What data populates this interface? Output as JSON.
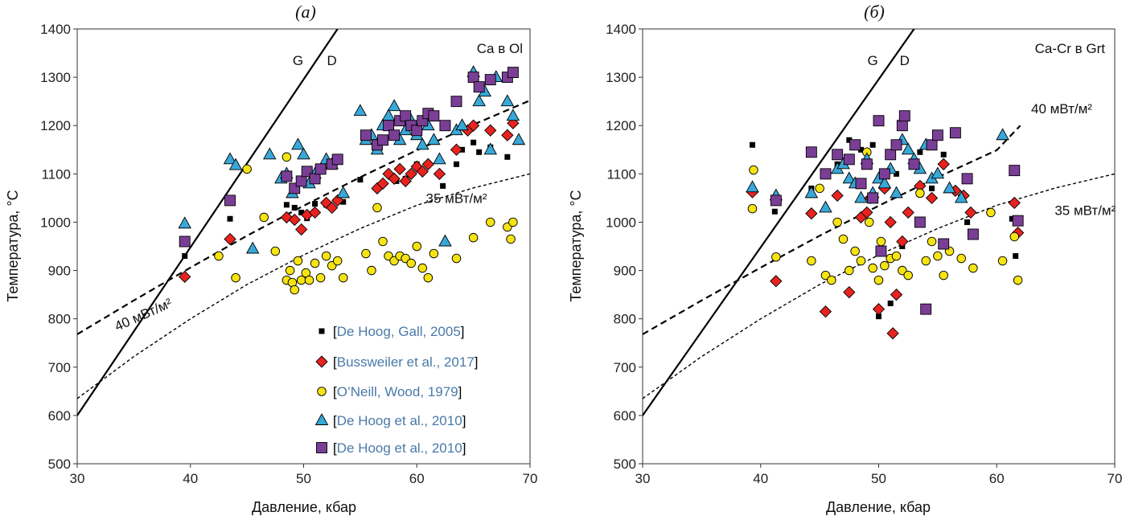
{
  "colors": {
    "series_a": "#000000",
    "series_b": "#e8231f",
    "series_c": "#f5e412",
    "series_d": "#38a8d8",
    "series_e": "#7a3e96",
    "legend_text": "#4a7aa8",
    "legend_bracket": "#000000"
  },
  "legend": {
    "items": [
      {
        "marker": "square-small",
        "open": "[",
        "text": "De Hoog, Gall, 2005",
        "close": "]"
      },
      {
        "marker": "diamond",
        "open": "[",
        "text": "Bussweiler et al., 2017",
        "close": "]"
      },
      {
        "marker": "circle",
        "open": "[",
        "text": "O’Neill, Wood, 1979",
        "close": "]"
      },
      {
        "marker": "triangle",
        "open": "[",
        "text": "De Hoog et al., 2010",
        "close": "]"
      },
      {
        "marker": "square",
        "open": "[",
        "text": "De Hoog et al., 2010",
        "close": "]"
      }
    ]
  },
  "chart_data": [
    {
      "type": "scatter",
      "panel_label": "(а)",
      "title": "Ca в Ol",
      "xlabel": "Давление, кбар",
      "ylabel": "Температура, °C",
      "xlim": [
        30,
        70
      ],
      "ylim": [
        500,
        1400
      ],
      "xticks": [
        "30",
        "40",
        "50",
        "60",
        "70"
      ],
      "yticks": [
        "500",
        "600",
        "700",
        "800",
        "900",
        "1000",
        "1100",
        "1200",
        "1300",
        "1400"
      ],
      "grid": false,
      "legend_position": "bottom-right",
      "lines": [
        {
          "style": "solid",
          "x": [
            30,
            53
          ],
          "y": [
            600,
            1400
          ]
        },
        {
          "style": "long-dash",
          "x": [
            30,
            35,
            40,
            45,
            50,
            55,
            60,
            65,
            70
          ],
          "y": [
            768,
            838,
            906,
            972,
            1034,
            1093,
            1149,
            1202,
            1252
          ]
        },
        {
          "style": "short-dash",
          "x": [
            30,
            35,
            40,
            45,
            50,
            55,
            60,
            65,
            70
          ],
          "y": [
            635,
            722,
            800,
            871,
            932,
            987,
            1035,
            1071,
            1100
          ]
        }
      ],
      "annotations": [
        {
          "text": "G",
          "x": 49.5,
          "y": 1325
        },
        {
          "text": "D",
          "x": 52.5,
          "y": 1325
        },
        {
          "text": "40 мВт/м²",
          "x": 36,
          "y": 800
        },
        {
          "text": "35 мВт/м²",
          "x": 63.5,
          "y": 1040
        }
      ],
      "series": [
        {
          "name": "[De Hoog, Gall, 2005]",
          "marker": "square-small",
          "x": [
            39.5,
            43.5,
            48.5,
            49.2,
            49.8,
            50.3,
            51,
            52,
            53.5,
            55,
            57.5,
            58.2,
            59,
            60,
            62.3,
            63.5,
            64,
            65,
            65.5,
            66.5,
            68
          ],
          "y": [
            930,
            1007,
            1036,
            1030,
            1020,
            1008,
            1038,
            1036,
            1042,
            1088,
            1100,
            1085,
            1090,
            1120,
            1075,
            1120,
            1150,
            1165,
            1145,
            1155,
            1135
          ]
        },
        {
          "name": "[Bussweiler et al., 2017]",
          "marker": "diamond",
          "x": [
            39.5,
            43.5,
            48.5,
            49.2,
            49.8,
            50.3,
            51,
            52,
            52.5,
            53,
            56.5,
            57,
            57.5,
            58,
            58.5,
            59,
            59.5,
            60,
            60.5,
            61,
            62,
            63.5,
            64.5,
            65,
            66.5,
            68,
            68.5
          ],
          "y": [
            887,
            965,
            1010,
            1005,
            985,
            1015,
            1020,
            1040,
            1030,
            1045,
            1070,
            1080,
            1100,
            1090,
            1110,
            1085,
            1100,
            1115,
            1105,
            1120,
            1100,
            1150,
            1190,
            1200,
            1190,
            1180,
            1205
          ]
        },
        {
          "name": "[O’Neill, Wood, 1979]",
          "marker": "circle",
          "x": [
            42.5,
            44,
            45,
            46.5,
            47.5,
            48.5,
            48.5,
            48.8,
            49,
            49.2,
            49.5,
            49.8,
            50.2,
            50.5,
            51,
            51.5,
            52,
            52.5,
            53,
            53.5,
            55.5,
            56,
            56.5,
            57,
            57.5,
            58,
            58.5,
            59,
            59.5,
            60,
            60.5,
            61,
            61.5,
            63.5,
            65,
            66.5,
            68,
            68.3,
            68.5
          ],
          "y": [
            930,
            885,
            1110,
            1010,
            940,
            1135,
            880,
            900,
            875,
            860,
            920,
            880,
            895,
            880,
            915,
            885,
            930,
            910,
            920,
            885,
            935,
            900,
            1030,
            960,
            930,
            920,
            930,
            925,
            915,
            950,
            905,
            885,
            935,
            925,
            968,
            1000,
            990,
            965,
            1000
          ]
        },
        {
          "name": "[De Hoog et al., 2010]",
          "marker": "triangle",
          "x": [
            39.5,
            43.5,
            44,
            45.5,
            47,
            48,
            48.5,
            49,
            49.5,
            50,
            50.5,
            51,
            52,
            52.5,
            53.5,
            55,
            55.5,
            56,
            56.5,
            57,
            57.5,
            58,
            58.5,
            59,
            59.5,
            60,
            60.5,
            61,
            61.5,
            62,
            62.5,
            63.5,
            64,
            65,
            65.5,
            66,
            66.5,
            67,
            68,
            68.5,
            69
          ],
          "y": [
            997,
            1130,
            1118,
            945,
            1140,
            1090,
            1100,
            1060,
            1160,
            1140,
            1080,
            1100,
            1130,
            1120,
            1060,
            1230,
            1170,
            1180,
            1150,
            1200,
            1220,
            1240,
            1170,
            1190,
            1210,
            1180,
            1160,
            1200,
            1170,
            1130,
            960,
            1190,
            1200,
            1310,
            1250,
            1270,
            1150,
            1300,
            1250,
            1220,
            1170
          ]
        },
        {
          "name": "[De Hoog et al., 2010]",
          "marker": "square",
          "x": [
            39.5,
            43.5,
            48.5,
            49.2,
            49.8,
            50.3,
            51,
            51.5,
            52.5,
            53,
            55.5,
            56.5,
            57,
            57.5,
            58,
            58.5,
            59,
            59.5,
            60,
            60.5,
            61,
            61.5,
            62.5,
            63.5,
            65,
            65.5,
            66.5,
            68,
            68.5
          ],
          "y": [
            960,
            1045,
            1095,
            1070,
            1085,
            1105,
            1090,
            1110,
            1120,
            1130,
            1180,
            1160,
            1170,
            1200,
            1180,
            1210,
            1220,
            1200,
            1190,
            1210,
            1225,
            1220,
            1200,
            1250,
            1300,
            1280,
            1295,
            1300,
            1310
          ]
        }
      ]
    },
    {
      "type": "scatter",
      "panel_label": "(б)",
      "title": "Ca-Cr в Grt",
      "xlabel": "Давление, кбар",
      "ylabel": "Температура, °C",
      "xlim": [
        30,
        70
      ],
      "ylim": [
        500,
        1400
      ],
      "xticks": [
        "30",
        "40",
        "50",
        "60",
        "70"
      ],
      "yticks": [
        "500",
        "600",
        "700",
        "800",
        "900",
        "1000",
        "1100",
        "1200",
        "1300",
        "1400"
      ],
      "grid": false,
      "legend_position": "none",
      "lines": [
        {
          "style": "solid",
          "x": [
            30,
            53
          ],
          "y": [
            600,
            1400
          ]
        },
        {
          "style": "long-dash",
          "x": [
            30,
            35,
            40,
            45,
            50,
            55,
            60,
            62
          ],
          "y": [
            768,
            838,
            906,
            972,
            1034,
            1093,
            1149,
            1200
          ]
        },
        {
          "style": "short-dash",
          "x": [
            30,
            35,
            40,
            45,
            50,
            55,
            60,
            65,
            70
          ],
          "y": [
            635,
            722,
            800,
            871,
            932,
            987,
            1035,
            1071,
            1100
          ]
        }
      ],
      "annotations": [
        {
          "text": "G",
          "x": 49.5,
          "y": 1325
        },
        {
          "text": "D",
          "x": 52.2,
          "y": 1325
        },
        {
          "text": "40 мВт/м²",
          "x": 65.5,
          "y": 1225
        },
        {
          "text": "35 мВт/м²",
          "x": 67.5,
          "y": 1015
        }
      ],
      "series": [
        {
          "name": "[De Hoog, Gall, 2005]",
          "marker": "square-small",
          "x": [
            39.3,
            41.2,
            44.3,
            46.5,
            47.5,
            48.5,
            49.5,
            50,
            50.3,
            51,
            51.5,
            52,
            53.5,
            54.5,
            55.5,
            57.5,
            61.3,
            61.6
          ],
          "y": [
            1160,
            1022,
            1070,
            1120,
            1170,
            1150,
            1160,
            805,
            1105,
            832,
            1100,
            950,
            1145,
            1070,
            1140,
            1000,
            1007,
            930
          ]
        },
        {
          "name": "[Bussweiler et al., 2017]",
          "marker": "diamond",
          "x": [
            39.3,
            41.3,
            44.3,
            45.5,
            46.5,
            47.5,
            48.5,
            49,
            49.3,
            50,
            50.5,
            51,
            51.2,
            51.5,
            52,
            52.5,
            53.5,
            54.5,
            55.5,
            56.5,
            57.2,
            57.8,
            61.5,
            61.8
          ],
          "y": [
            1062,
            878,
            1018,
            815,
            1055,
            855,
            1010,
            1020,
            1050,
            820,
            1070,
            1000,
            770,
            850,
            960,
            1020,
            1075,
            1050,
            1120,
            1065,
            1055,
            1020,
            1040,
            978
          ]
        },
        {
          "name": "[O’Neill, Wood, 1979]",
          "marker": "circle",
          "x": [
            39.3,
            39.4,
            41.3,
            44.3,
            45,
            45.5,
            46,
            46.5,
            47,
            47.5,
            48,
            48.5,
            49,
            49.2,
            49.5,
            50,
            50.2,
            50.5,
            51,
            51.5,
            52,
            52.5,
            53.5,
            54,
            54.5,
            55,
            55.5,
            56,
            57,
            58,
            59.5,
            60.5,
            61.5,
            61.8
          ],
          "y": [
            1028,
            1108,
            928,
            920,
            1070,
            890,
            880,
            1000,
            965,
            900,
            940,
            920,
            1145,
            1000,
            905,
            880,
            960,
            910,
            925,
            930,
            900,
            890,
            1060,
            920,
            960,
            930,
            890,
            940,
            925,
            905,
            1020,
            920,
            970,
            880
          ]
        },
        {
          "name": "[De Hoog et al., 2010]",
          "marker": "triangle",
          "x": [
            39.3,
            41.3,
            44.3,
            45.5,
            46.5,
            47,
            47.5,
            48,
            48.5,
            49,
            49.5,
            50,
            50.5,
            51,
            51.5,
            52,
            52.5,
            53,
            53.5,
            54,
            54.5,
            55,
            56,
            57,
            60.5
          ],
          "y": [
            1072,
            1055,
            1060,
            1030,
            1110,
            1120,
            1090,
            1080,
            1050,
            1130,
            1060,
            1090,
            1080,
            1110,
            1060,
            1170,
            1150,
            1130,
            1110,
            1160,
            1090,
            1100,
            1070,
            1050,
            1180
          ]
        },
        {
          "name": "[De Hoog et al., 2010]",
          "marker": "square",
          "x": [
            41.3,
            44.3,
            45.5,
            46.5,
            47.5,
            48,
            48.5,
            49,
            49.5,
            50,
            50.2,
            50.5,
            51,
            51.5,
            52,
            52.2,
            53,
            53.5,
            54,
            54.5,
            55,
            55.5,
            56.5,
            57.5,
            58,
            61.5,
            61.8
          ],
          "y": [
            1045,
            1145,
            1100,
            1140,
            1130,
            1160,
            1080,
            1120,
            1050,
            1210,
            940,
            1100,
            1140,
            1160,
            1200,
            1220,
            1120,
            1000,
            820,
            1160,
            1180,
            955,
            1185,
            1090,
            975,
            1107,
            1003
          ]
        }
      ]
    }
  ]
}
